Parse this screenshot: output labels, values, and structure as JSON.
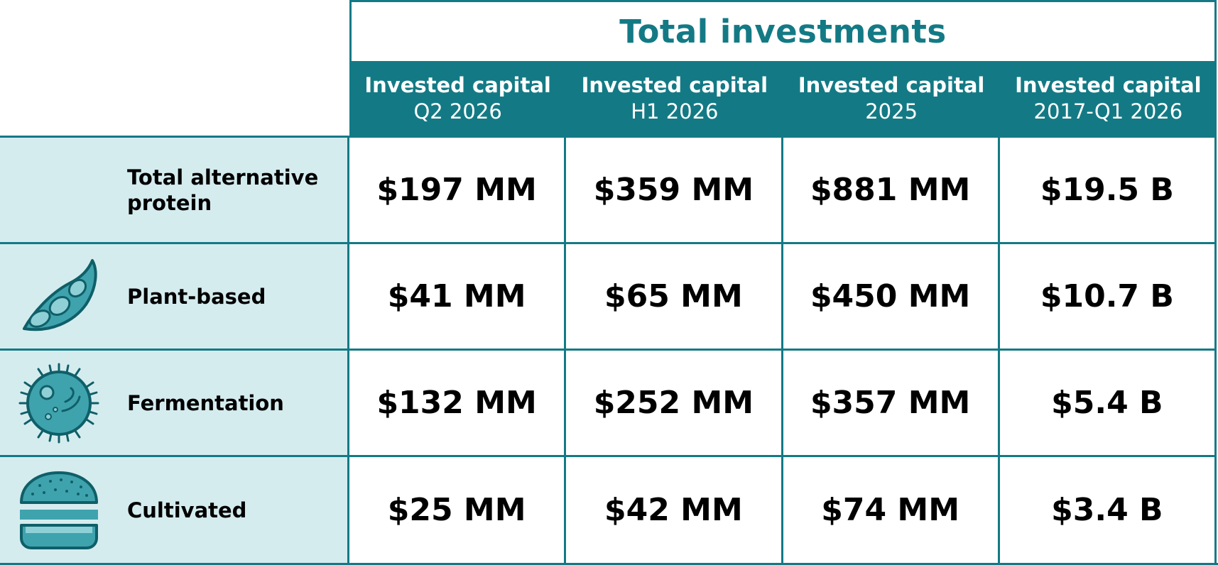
{
  "chart_data": {
    "type": "table",
    "title": "Total investments",
    "columns": [
      {
        "line1": "Invested capital",
        "line2": "Q2 2026"
      },
      {
        "line1": "Invested capital",
        "line2": "H1 2026"
      },
      {
        "line1": "Invested capital",
        "line2": "2025"
      },
      {
        "line1": "Invested capital",
        "line2": "2017-Q1 2026"
      }
    ],
    "rows": [
      {
        "label": "Total alternative protein",
        "icon": "none",
        "values": [
          "$197 MM",
          "$359 MM",
          "$881 MM",
          "$19.5 B"
        ]
      },
      {
        "label": "Plant-based",
        "icon": "soybean-pod-icon",
        "values": [
          "$41 MM",
          "$65 MM",
          "$450 MM",
          "$10.7 B"
        ]
      },
      {
        "label": "Fermentation",
        "icon": "microbe-icon",
        "values": [
          "$132 MM",
          "$252 MM",
          "$357 MM",
          "$5.4 B"
        ]
      },
      {
        "label": "Cultivated",
        "icon": "burger-icon",
        "values": [
          "$25 MM",
          "$42 MM",
          "$74 MM",
          "$3.4 B"
        ]
      }
    ],
    "colors": {
      "accent": "#137a85",
      "label_bg": "#d5ecef",
      "icon_fill": "#3fa3ae"
    }
  }
}
